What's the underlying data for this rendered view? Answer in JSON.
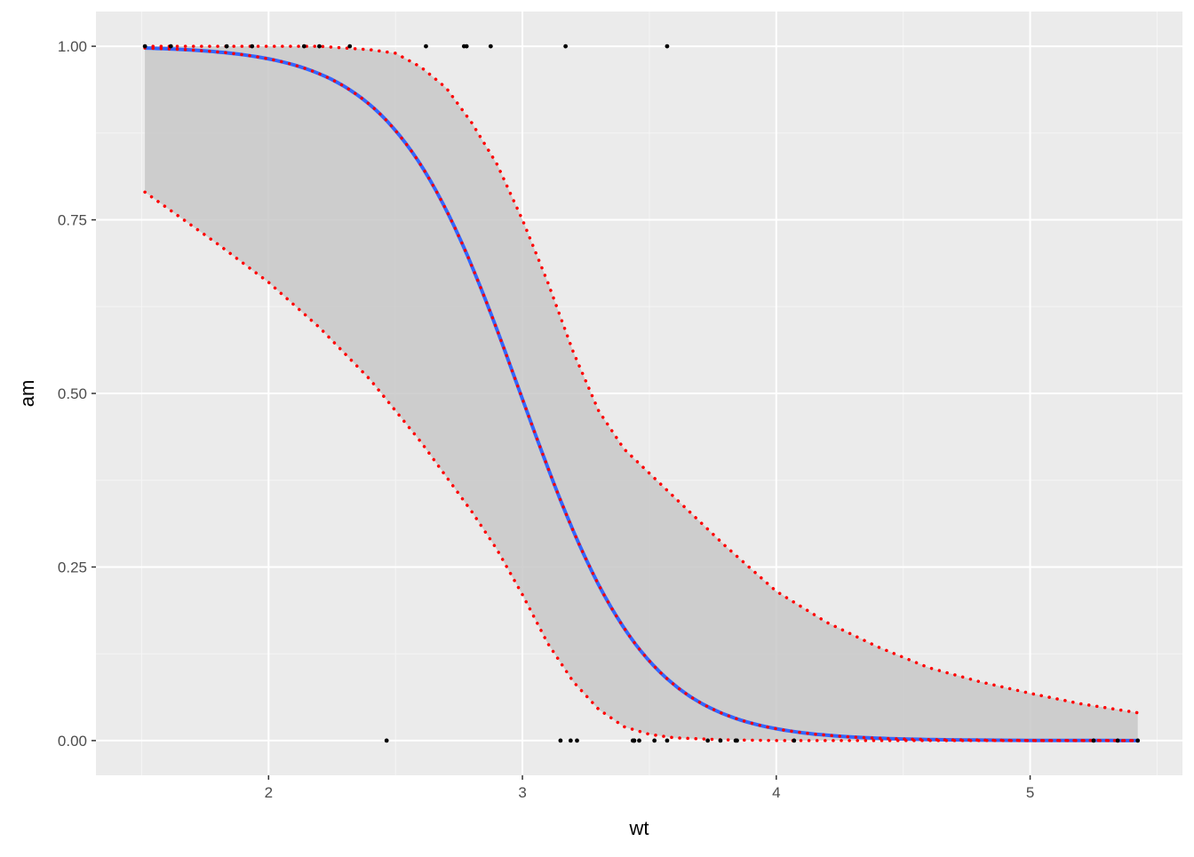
{
  "chart_data": {
    "type": "line",
    "title": "",
    "xlabel": "wt",
    "ylabel": "am",
    "xlim": [
      1.32,
      5.6
    ],
    "ylim": [
      -0.05,
      1.05
    ],
    "grid": true,
    "legend": "none",
    "x_ticks": [
      2,
      3,
      4,
      5
    ],
    "x_tick_labels": [
      "2",
      "3",
      "4",
      "5"
    ],
    "y_ticks": [
      0,
      0.25,
      0.5,
      0.75,
      1
    ],
    "y_tick_labels": [
      "0.00",
      "0.25",
      "0.50",
      "0.75",
      "1.00"
    ],
    "colors": {
      "panel_background": "#ebebeb",
      "grid_major": "#ffffff",
      "grid_minor": "#f5f5f5",
      "fit_line": "#3366ff",
      "ribbon": "#c8c8c8",
      "dotted_overlay": "#ff0000",
      "points": "#000000"
    },
    "fit": {
      "model": "logistic",
      "intercept": 12.04,
      "slope": -4.024,
      "x_range": [
        1.513,
        5.424
      ]
    },
    "ribbon_lower": [
      [
        1.513,
        0.79
      ],
      [
        1.8,
        0.715
      ],
      [
        2.0,
        0.66
      ],
      [
        2.2,
        0.595
      ],
      [
        2.4,
        0.52
      ],
      [
        2.6,
        0.43
      ],
      [
        2.8,
        0.33
      ],
      [
        2.9,
        0.275
      ],
      [
        3.0,
        0.21
      ],
      [
        3.1,
        0.14
      ],
      [
        3.2,
        0.085
      ],
      [
        3.3,
        0.045
      ],
      [
        3.4,
        0.02
      ],
      [
        3.5,
        0.009
      ],
      [
        3.6,
        0.004
      ],
      [
        3.8,
        0.001
      ],
      [
        4.0,
        0.0
      ],
      [
        5.424,
        0.0
      ]
    ],
    "ribbon_upper": [
      [
        1.513,
        1.0
      ],
      [
        2.2,
        1.0
      ],
      [
        2.4,
        0.995
      ],
      [
        2.5,
        0.99
      ],
      [
        2.6,
        0.97
      ],
      [
        2.7,
        0.94
      ],
      [
        2.8,
        0.89
      ],
      [
        2.9,
        0.83
      ],
      [
        3.0,
        0.75
      ],
      [
        3.1,
        0.66
      ],
      [
        3.2,
        0.56
      ],
      [
        3.3,
        0.475
      ],
      [
        3.4,
        0.42
      ],
      [
        3.6,
        0.35
      ],
      [
        3.8,
        0.28
      ],
      [
        4.0,
        0.215
      ],
      [
        4.2,
        0.17
      ],
      [
        4.4,
        0.135
      ],
      [
        4.6,
        0.105
      ],
      [
        4.8,
        0.085
      ],
      [
        5.0,
        0.068
      ],
      [
        5.2,
        0.053
      ],
      [
        5.424,
        0.04
      ]
    ],
    "points": [
      {
        "x": 2.62,
        "y": 1
      },
      {
        "x": 2.875,
        "y": 1
      },
      {
        "x": 2.32,
        "y": 1
      },
      {
        "x": 2.2,
        "y": 1
      },
      {
        "x": 1.615,
        "y": 1
      },
      {
        "x": 1.835,
        "y": 1
      },
      {
        "x": 1.935,
        "y": 1
      },
      {
        "x": 2.14,
        "y": 1
      },
      {
        "x": 1.513,
        "y": 1
      },
      {
        "x": 3.17,
        "y": 1
      },
      {
        "x": 2.77,
        "y": 1
      },
      {
        "x": 3.57,
        "y": 1
      },
      {
        "x": 2.78,
        "y": 1
      },
      {
        "x": 3.215,
        "y": 0
      },
      {
        "x": 3.44,
        "y": 0
      },
      {
        "x": 3.46,
        "y": 0
      },
      {
        "x": 3.57,
        "y": 0
      },
      {
        "x": 3.19,
        "y": 0
      },
      {
        "x": 3.15,
        "y": 0
      },
      {
        "x": 3.44,
        "y": 0
      },
      {
        "x": 3.44,
        "y": 0
      },
      {
        "x": 4.07,
        "y": 0
      },
      {
        "x": 3.73,
        "y": 0
      },
      {
        "x": 3.78,
        "y": 0
      },
      {
        "x": 5.25,
        "y": 0
      },
      {
        "x": 5.424,
        "y": 0
      },
      {
        "x": 5.345,
        "y": 0
      },
      {
        "x": 2.465,
        "y": 0
      },
      {
        "x": 3.52,
        "y": 0
      },
      {
        "x": 3.435,
        "y": 0
      },
      {
        "x": 3.84,
        "y": 0
      },
      {
        "x": 3.845,
        "y": 0
      }
    ]
  }
}
